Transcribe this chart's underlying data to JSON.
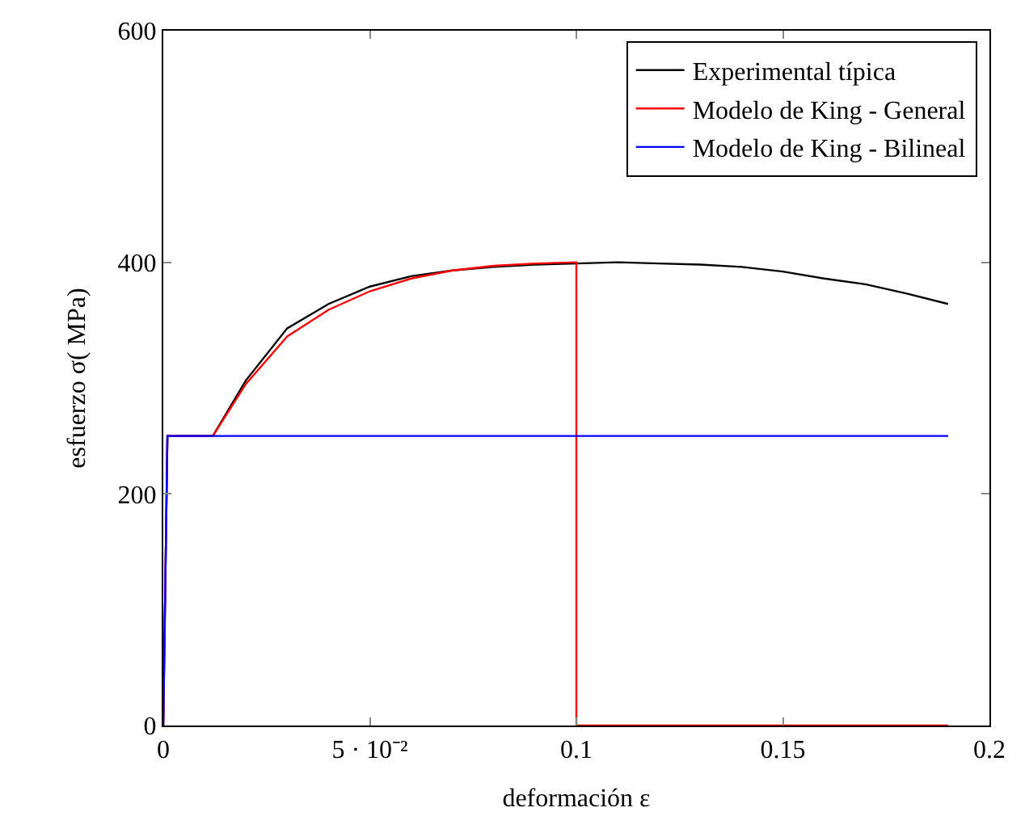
{
  "chart_data": {
    "type": "line",
    "xlabel": "deformación ε",
    "ylabel": "esfuerzo σ( MPa)",
    "xlim": [
      0,
      0.2
    ],
    "ylim": [
      0,
      600
    ],
    "xticks": [
      0,
      {
        "value": 0.05,
        "label": "5 · 10⁻²"
      },
      0.1,
      0.15,
      0.2
    ],
    "yticks": [
      0,
      200,
      400,
      600
    ],
    "legend": "top right",
    "marker": "none",
    "line_style": "solid",
    "series": [
      {
        "name": "Experimental típica",
        "color": "#000000",
        "x": [
          0,
          0.001,
          0.012,
          0.02,
          0.03,
          0.04,
          0.05,
          0.06,
          0.07,
          0.08,
          0.09,
          0.1,
          0.11,
          0.12,
          0.13,
          0.14,
          0.15,
          0.16,
          0.17,
          0.18,
          0.19
        ],
        "values": [
          0,
          250,
          250,
          298,
          343,
          364,
          379,
          388,
          393,
          396,
          398,
          399,
          400,
          399,
          398,
          396,
          392,
          386,
          381,
          373,
          364
        ]
      },
      {
        "name": "Modelo de King - General",
        "color": "#ff0000",
        "x": [
          0,
          0.001,
          0.012,
          0.02,
          0.03,
          0.04,
          0.05,
          0.06,
          0.07,
          0.08,
          0.09,
          0.1,
          0.1,
          0.19
        ],
        "values": [
          0,
          250,
          250,
          295,
          336,
          359,
          375,
          386,
          393,
          397,
          399,
          400,
          0,
          0
        ]
      },
      {
        "name": "Modelo de King - Bilineal",
        "color": "#0000ff",
        "x": [
          0,
          0.001,
          0.19
        ],
        "values": [
          0,
          250,
          250
        ]
      }
    ]
  }
}
